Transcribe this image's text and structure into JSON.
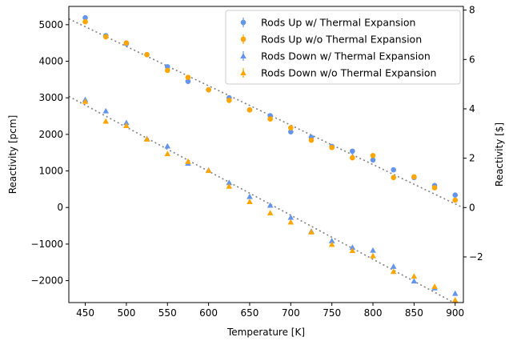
{
  "chart_data": {
    "type": "scatter",
    "xlabel": "Temperature [K]",
    "ylabel": "Reactivity [pcm]",
    "ylabel_right": "Reactivity [$]",
    "xlim": [
      430,
      910
    ],
    "ylim": [
      -2600,
      5500
    ],
    "ylim_right_dollars": [
      -3.85,
      8.15
    ],
    "x_ticks": [
      450,
      500,
      550,
      600,
      650,
      700,
      750,
      800,
      850,
      900
    ],
    "y_ticks": [
      -2000,
      -1000,
      0,
      1000,
      2000,
      3000,
      4000,
      5000
    ],
    "y_ticks_right": [
      -2,
      0,
      2,
      4,
      6,
      8
    ],
    "grid": false,
    "legend_position": "top-right",
    "x": [
      450,
      475,
      500,
      525,
      550,
      575,
      600,
      625,
      650,
      675,
      700,
      725,
      750,
      775,
      800,
      825,
      850,
      875,
      900
    ],
    "series": [
      {
        "name": "Rods Up w/ Thermal Expansion",
        "marker": "circle",
        "color": "#6495ED",
        "values": [
          5190,
          4700,
          4480,
          4180,
          3850,
          3450,
          3220,
          3000,
          2670,
          2510,
          2070,
          1920,
          1670,
          1540,
          1300,
          1030,
          820,
          600,
          340
        ]
      },
      {
        "name": "Rods Up w/o Thermal Expansion",
        "marker": "circle",
        "color": "#FFA500",
        "values": [
          5080,
          4670,
          4500,
          4180,
          3750,
          3560,
          3220,
          2930,
          2670,
          2420,
          2180,
          1840,
          1640,
          1360,
          1420,
          820,
          840,
          540,
          200
        ]
      },
      {
        "name": "Rods Down w/ Thermal Expansion",
        "marker": "triangle",
        "color": "#6495ED",
        "values": [
          2950,
          2640,
          2320,
          1880,
          1680,
          1210,
          1020,
          680,
          300,
          60,
          -270,
          -650,
          -910,
          -1090,
          -1170,
          -1610,
          -2010,
          -2200,
          -2350
        ]
      },
      {
        "name": "Rods Down w/o Thermal Expansion",
        "marker": "triangle",
        "color": "#FFA500",
        "values": [
          2900,
          2360,
          2240,
          1870,
          1470,
          1260,
          1010,
          580,
          160,
          -150,
          -400,
          -670,
          -1010,
          -1180,
          -1320,
          -1750,
          -1880,
          -2160,
          -2530
        ]
      }
    ],
    "fit_lines": [
      {
        "style": "dotted",
        "color": "#808080",
        "x": [
          430,
          910
        ],
        "y": [
          5160,
          -10
        ]
      },
      {
        "style": "dotted",
        "color": "#808080",
        "x": [
          430,
          910
        ],
        "y": [
          3040,
          -2740
        ]
      }
    ]
  }
}
